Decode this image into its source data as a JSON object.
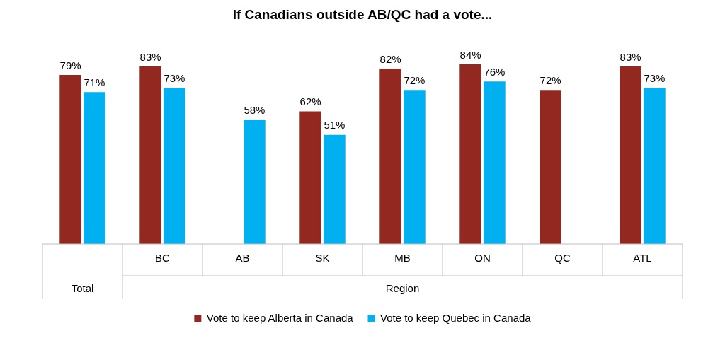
{
  "chart_data": {
    "type": "bar",
    "title": "If Canadians outside AB/QC had a vote...",
    "categories": [
      null,
      "BC",
      "AB",
      "SK",
      "MB",
      "ON",
      "QC",
      "ATL"
    ],
    "series": [
      {
        "name": "Vote to keep Alberta in Canada",
        "color": "#922820",
        "values": [
          79,
          83,
          null,
          62,
          82,
          84,
          72,
          83
        ],
        "value_labels": [
          "79%",
          "83%",
          null,
          "62%",
          "82%",
          "84%",
          "72%",
          "83%"
        ]
      },
      {
        "name": "Vote to keep Quebec in Canada",
        "color": "#00b0f0",
        "values": [
          71,
          73,
          58,
          51,
          72,
          76,
          null,
          73
        ],
        "value_labels": [
          "71%",
          "73%",
          "58%",
          "51%",
          "72%",
          "76%",
          null,
          "73%"
        ]
      }
    ],
    "annotations": [
      "Total",
      "Region"
    ],
    "legend": "bottom"
  }
}
